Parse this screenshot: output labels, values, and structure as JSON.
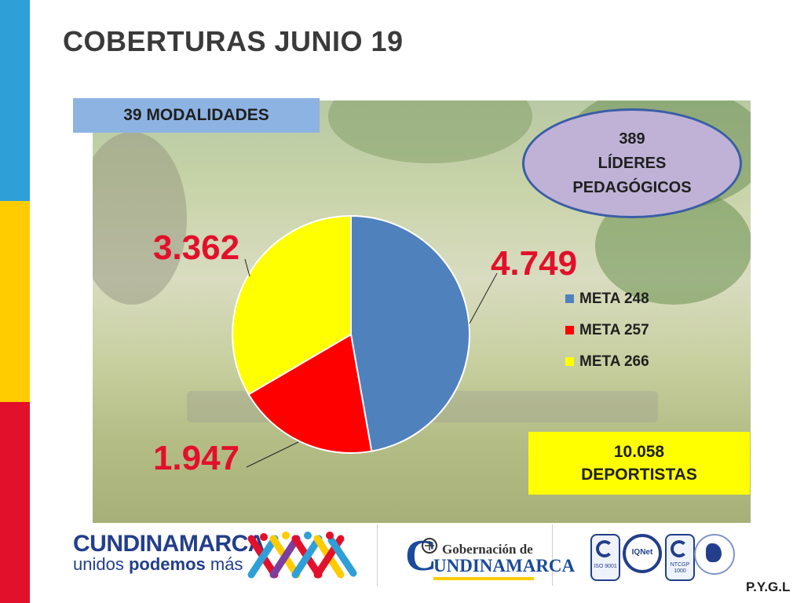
{
  "title": "COBERTURAS JUNIO 19",
  "modalidades": "39 MODALIDADES",
  "lideres": {
    "number": "389",
    "line1": "LÍDERES",
    "line2": "PEDAGÓGICOS"
  },
  "deportistas": {
    "number": "10.058",
    "label": "DEPORTISTAS"
  },
  "chart_data": {
    "type": "pie",
    "categories": [
      "META 248",
      "META 257",
      "META 266"
    ],
    "values": [
      4749,
      1947,
      3362
    ],
    "labels": [
      "4.749",
      "1.947",
      "3.362"
    ],
    "colors": [
      "#4f81bd",
      "#ff0000",
      "#ffff00"
    ],
    "legend": "right"
  },
  "footer": {
    "brand": "CUNDINAMARCA",
    "slogan_prefix": "unidos ",
    "slogan_bold": "podemos",
    "slogan_suffix": " más",
    "gob_line1": "Gobernación de",
    "gob_c": "C",
    "gob_line2": "UNDINAMARCA",
    "cert_labels": [
      "ISO 9001",
      "IQNet",
      "NTCGP 1000"
    ],
    "initials": "P.Y.G.L"
  }
}
